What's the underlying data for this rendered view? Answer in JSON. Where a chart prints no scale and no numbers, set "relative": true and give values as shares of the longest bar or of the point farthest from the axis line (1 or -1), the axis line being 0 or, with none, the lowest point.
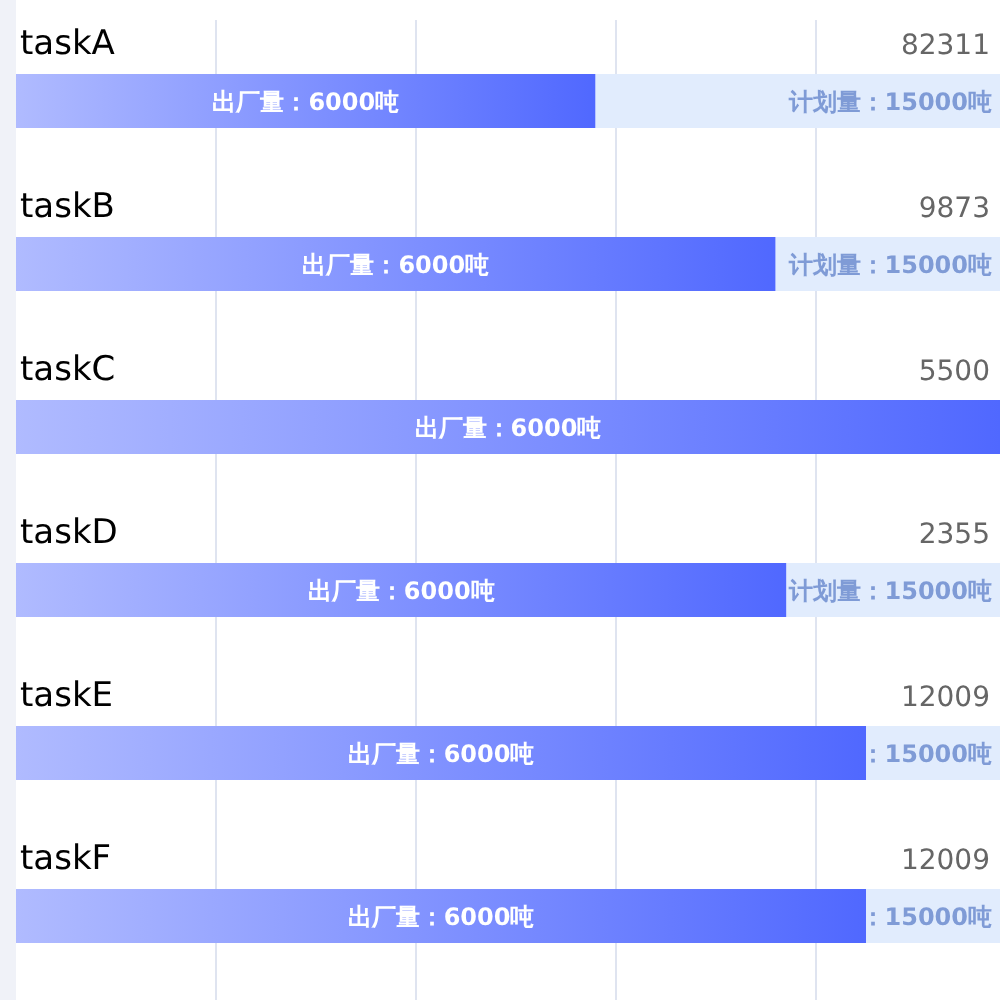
{
  "chart_data": {
    "type": "bar",
    "orientation": "horizontal",
    "relative": true,
    "stacked": true,
    "grid": "x",
    "categories": [
      "taskA",
      "taskB",
      "taskC",
      "taskD",
      "taskE",
      "taskF"
    ],
    "series": [
      {
        "color": "#5068ff",
        "values": [
          0.589,
          0.772,
          1,
          0.783,
          0.864,
          0.864
        ]
      },
      {
        "color": "#e1ecfd",
        "values": [
          0.411,
          0.228,
          0,
          0.217,
          0.136,
          0.136
        ]
      }
    ],
    "annotations": [
      "82311",
      "9873",
      "5500",
      "2355",
      "12009",
      "12009",
      "出厂量：6000吨",
      "出厂量：6000吨",
      "出厂量：6000吨",
      "出厂量：6000吨",
      "出厂量：6000吨",
      "出厂量：6000吨",
      "计划量：15000吨",
      "计划量：15000吨",
      "计划量：15000吨",
      "：15000吨",
      "：15000吨"
    ]
  }
}
